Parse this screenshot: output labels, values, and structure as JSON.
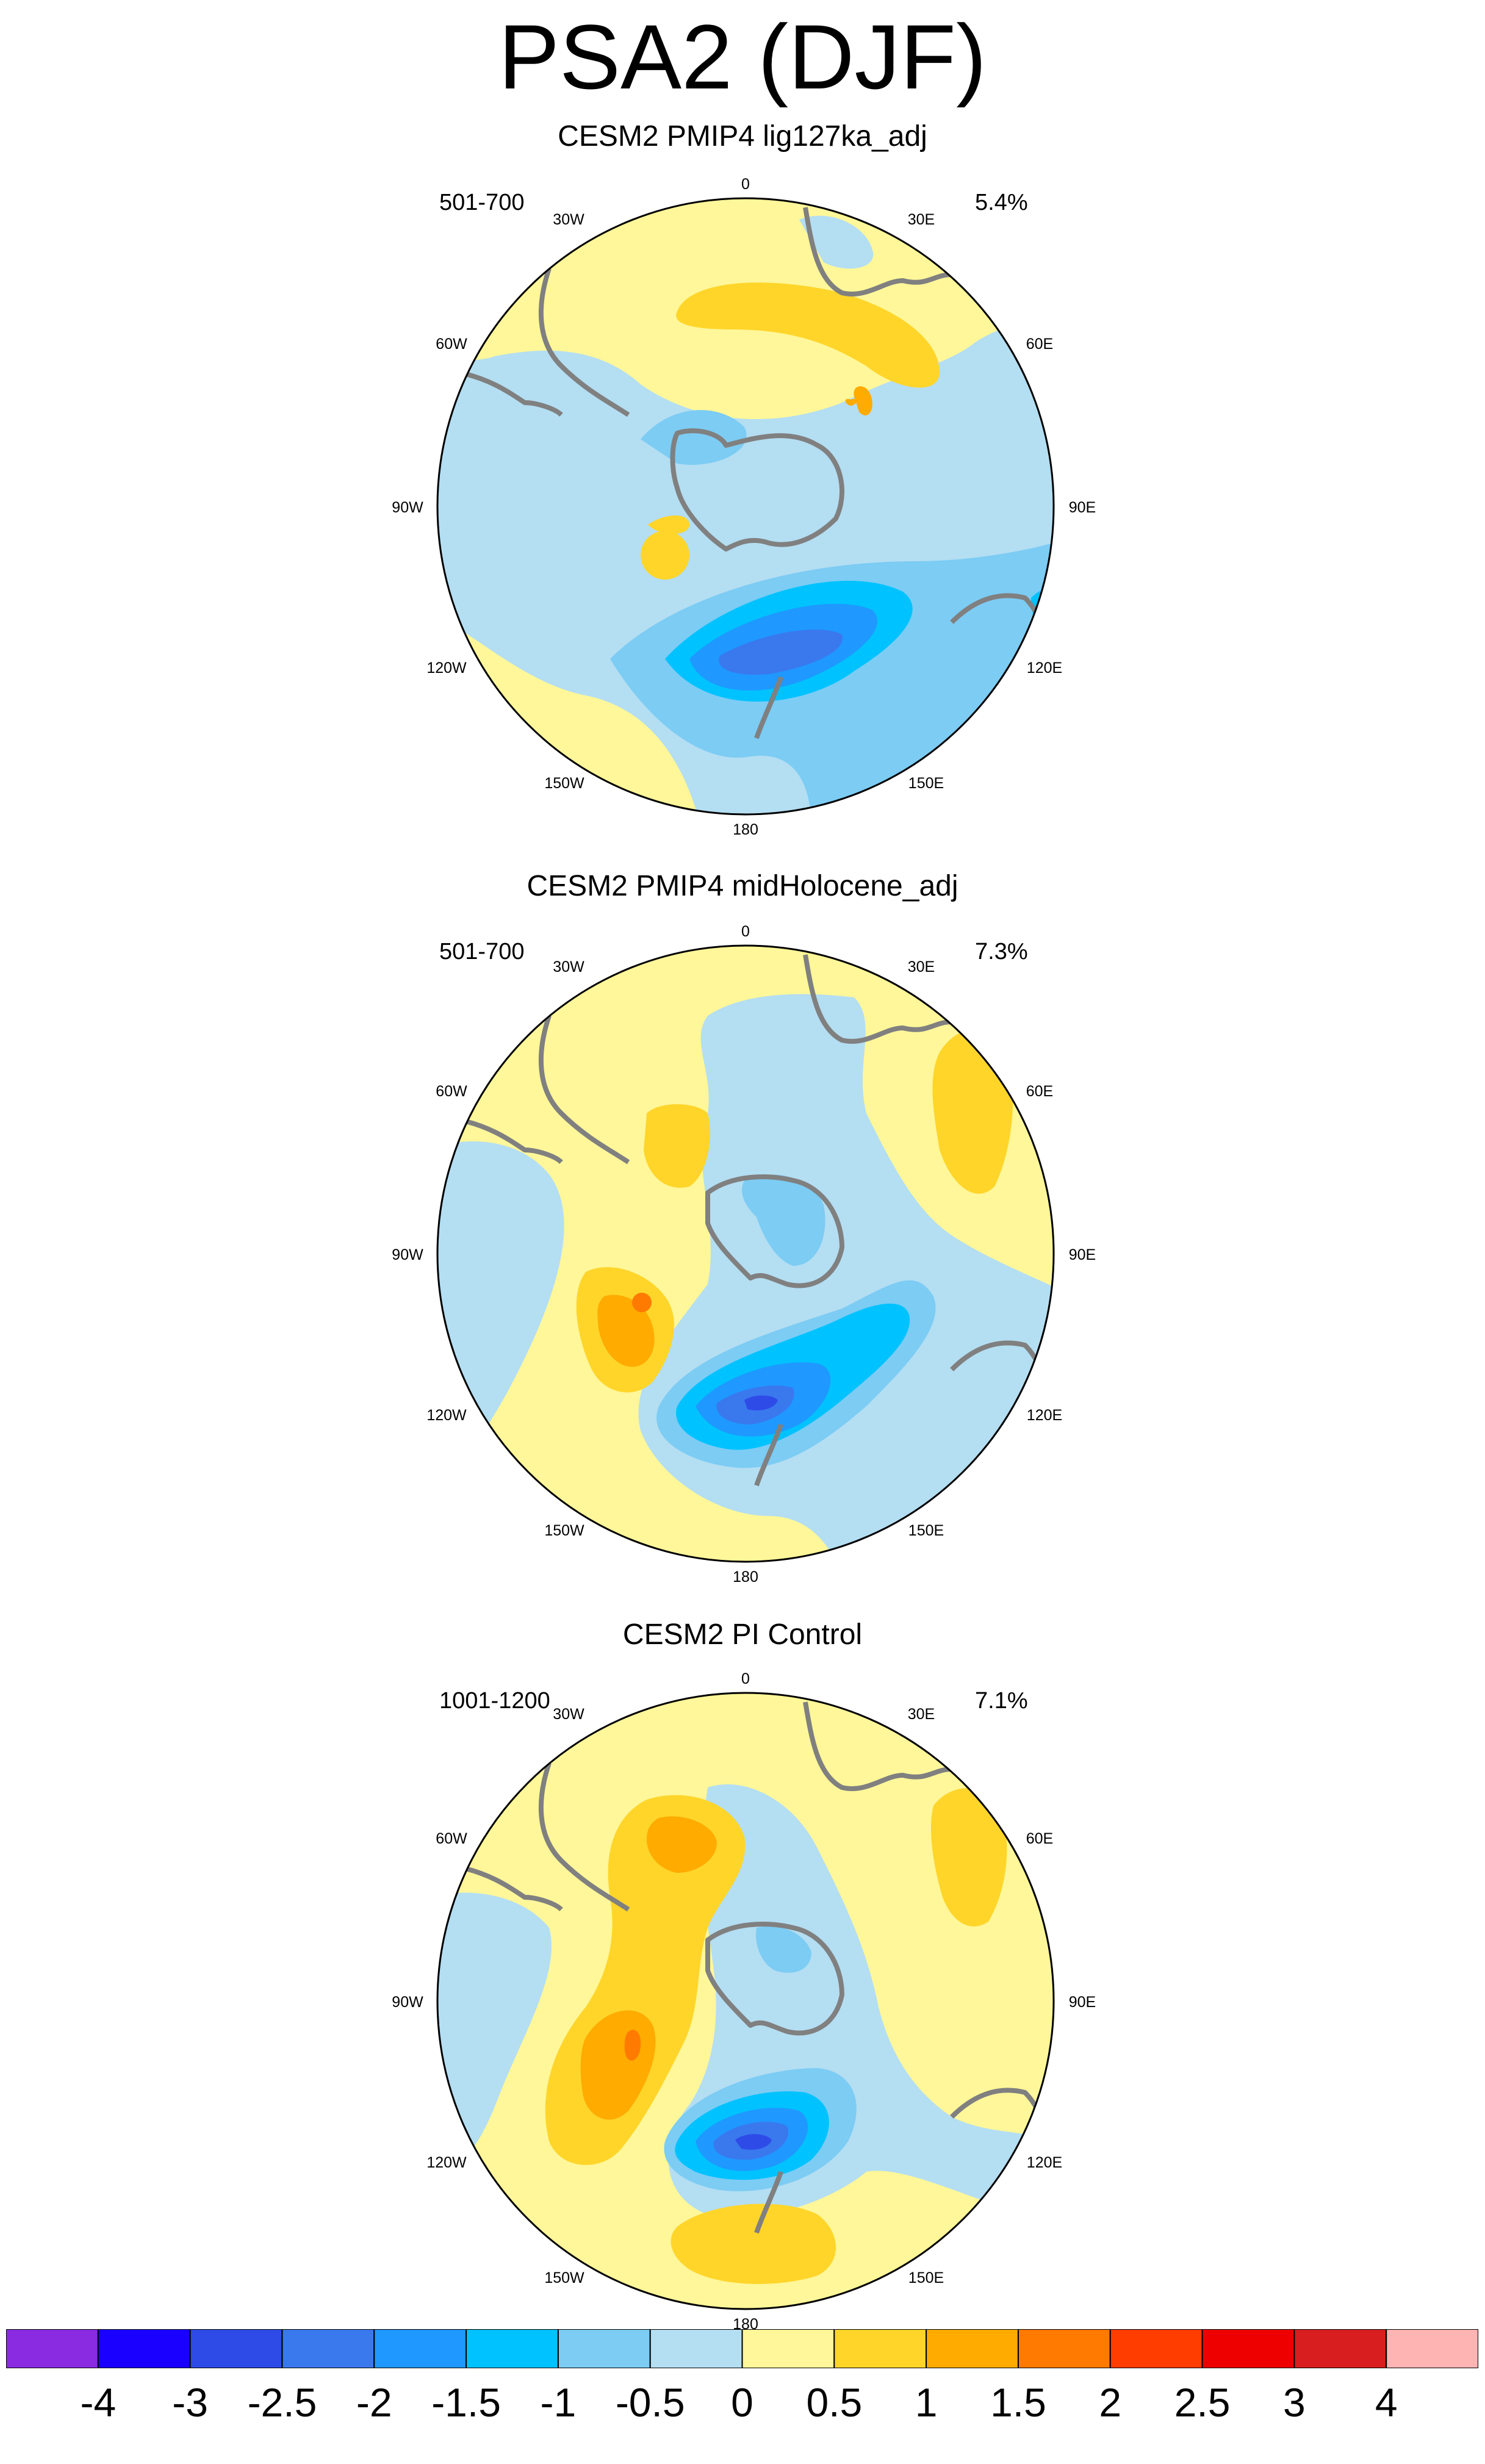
{
  "title": "PSA2 (DJF)",
  "palette": {
    "levels": [
      "-4",
      "-3",
      "-2.5",
      "-2",
      "-1.5",
      "-1",
      "-0.5",
      "0",
      "0.5",
      "1",
      "1.5",
      "2",
      "2.5",
      "3",
      "4"
    ],
    "colors": [
      "#8a2be2",
      "#1a00ff",
      "#2e4be8",
      "#3a78ee",
      "#1f98ff",
      "#00c2ff",
      "#7cccf4",
      "#b4def2",
      "#fff799",
      "#ffd52a",
      "#ffab00",
      "#ff7a00",
      "#ff3d00",
      "#ee0000",
      "#d81e1e",
      "#ffb4b4"
    ]
  },
  "land_color": "#808080",
  "panels": [
    {
      "title": "CESM2 PMIP4 lig127ka_adj",
      "years": "501-700",
      "variance": "5.4%",
      "lon_labels": {
        "n": "0",
        "e30": "30E",
        "e60": "60E",
        "e90": "90E",
        "e120": "120E",
        "e150": "150E",
        "s": "180",
        "w150": "150W",
        "w120": "120W",
        "w90": "90W",
        "w60": "60W",
        "w30": "30W"
      }
    },
    {
      "title": "CESM2 PMIP4 midHolocene_adj",
      "years": "501-700",
      "variance": "7.3%",
      "lon_labels": {
        "n": "0",
        "e30": "30E",
        "e60": "60E",
        "e90": "90E",
        "e120": "120E",
        "e150": "150E",
        "s": "180",
        "w150": "150W",
        "w120": "120W",
        "w90": "90W",
        "w60": "60W",
        "w30": "30W"
      }
    },
    {
      "title": "CESM2 PI Control",
      "years": "1001-1200",
      "variance": "7.1%",
      "lon_labels": {
        "n": "0",
        "e30": "30E",
        "e60": "60E",
        "e90": "90E",
        "e120": "120E",
        "e150": "150E",
        "s": "180",
        "w150": "150W",
        "w120": "120W",
        "w90": "90W",
        "w60": "60W",
        "w30": "30W"
      }
    }
  ]
}
